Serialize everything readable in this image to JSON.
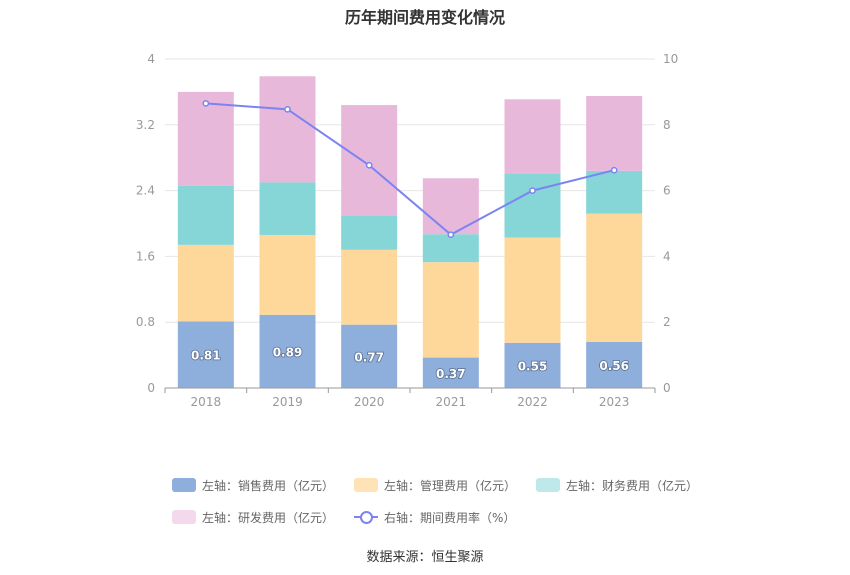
{
  "title": "历年期间费用变化情况",
  "source": "数据来源：恒生聚源",
  "chart_data": {
    "type": "bar",
    "stacked": true,
    "categories": [
      "2018",
      "2019",
      "2020",
      "2021",
      "2022",
      "2023"
    ],
    "left_axis": {
      "min": 0,
      "max": 4,
      "ticks": [
        "0",
        "0.8",
        "1.6",
        "2.4",
        "3.2",
        "4"
      ]
    },
    "right_axis": {
      "min": 0,
      "max": 10,
      "ticks": [
        "0",
        "2",
        "4",
        "6",
        "8",
        "10"
      ]
    },
    "series": [
      {
        "name": "左轴：销售费用（亿元）",
        "axis": "left",
        "color": "#8eaedc",
        "values": [
          0.81,
          0.89,
          0.77,
          0.37,
          0.55,
          0.56
        ],
        "labels": [
          "0.81",
          "0.89",
          "0.77",
          "0.37",
          "0.55",
          "0.56"
        ]
      },
      {
        "name": "左轴：管理费用（亿元）",
        "axis": "left",
        "color": "#fed89b",
        "values": [
          0.93,
          0.97,
          0.91,
          1.16,
          1.28,
          1.56
        ]
      },
      {
        "name": "左轴：财务费用（亿元）",
        "axis": "left",
        "color": "#86d6d8",
        "values": [
          0.72,
          0.64,
          0.42,
          0.34,
          0.78,
          0.52
        ]
      },
      {
        "name": "左轴：研发费用（亿元）",
        "axis": "left",
        "color": "#e8b8da",
        "values": [
          1.14,
          1.29,
          1.34,
          0.68,
          0.9,
          0.91
        ]
      },
      {
        "name": "右轴：期间费用率（%）",
        "axis": "right",
        "type": "line",
        "color": "#7b84f0",
        "values": [
          8.65,
          8.47,
          6.77,
          4.66,
          6.0,
          6.62
        ]
      }
    ],
    "legend_colors": [
      "#8eaedc",
      "#fde3b6",
      "#bfe8ea",
      "#f4d9ec"
    ],
    "grid": true,
    "legend_position": "bottom"
  }
}
